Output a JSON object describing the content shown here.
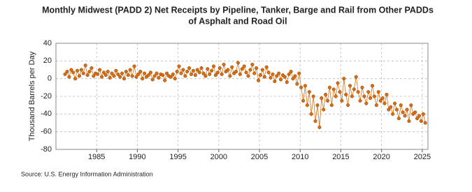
{
  "chart_data": {
    "type": "scatter",
    "title": [
      "Monthly Midwest (PADD 2) Net Receipts by Pipeline, Tanker, Barge and Rail from Other PADDs",
      "of Asphalt and Road Oil"
    ],
    "y_label": "Thousand Barrels per Day",
    "source": "Source: U.S. Energy Information Administration",
    "xlim": [
      1980,
      2025.7
    ],
    "xticks": [
      1985,
      1990,
      1995,
      2000,
      2005,
      2010,
      2015,
      2020,
      2025
    ],
    "ylim": [
      -80,
      40
    ],
    "yticks": [
      -80,
      -60,
      -40,
      -20,
      0,
      20,
      40
    ],
    "grid": true,
    "series": [
      {
        "name": "Net Receipts",
        "color": "#d96e10",
        "edge": "#8a3c00",
        "x": [
          1981.125,
          1981.375,
          1981.625,
          1981.875,
          1982.125,
          1982.375,
          1982.625,
          1982.875,
          1983.125,
          1983.375,
          1983.625,
          1983.875,
          1984.125,
          1984.375,
          1984.625,
          1984.875,
          1985.125,
          1985.375,
          1985.625,
          1985.875,
          1986.125,
          1986.375,
          1986.625,
          1986.875,
          1987.125,
          1987.375,
          1987.625,
          1987.875,
          1988.125,
          1988.375,
          1988.625,
          1988.875,
          1989.125,
          1989.375,
          1989.625,
          1989.875,
          1990.125,
          1990.375,
          1990.625,
          1990.875,
          1991.125,
          1991.375,
          1991.625,
          1991.875,
          1992.125,
          1992.375,
          1992.625,
          1992.875,
          1993.125,
          1993.375,
          1993.625,
          1993.875,
          1994.125,
          1994.375,
          1994.625,
          1994.875,
          1995.125,
          1995.375,
          1995.625,
          1995.875,
          1996.125,
          1996.375,
          1996.625,
          1996.875,
          1997.125,
          1997.375,
          1997.625,
          1997.875,
          1998.125,
          1998.375,
          1998.625,
          1998.875,
          1999.125,
          1999.375,
          1999.625,
          1999.875,
          2000.125,
          2000.375,
          2000.625,
          2000.875,
          2001.125,
          2001.375,
          2001.625,
          2001.875,
          2002.125,
          2002.375,
          2002.625,
          2002.875,
          2003.125,
          2003.375,
          2003.625,
          2003.875,
          2004.125,
          2004.375,
          2004.625,
          2004.875,
          2005.125,
          2005.375,
          2005.625,
          2005.875,
          2006.125,
          2006.375,
          2006.625,
          2006.875,
          2007.125,
          2007.375,
          2007.625,
          2007.875,
          2008.125,
          2008.375,
          2008.625,
          2008.875,
          2009.125,
          2009.375,
          2009.625,
          2009.875,
          2010.125,
          2010.375,
          2010.625,
          2010.875,
          2011.125,
          2011.375,
          2011.625,
          2011.875,
          2012.125,
          2012.375,
          2012.625,
          2012.875,
          2013.125,
          2013.375,
          2013.625,
          2013.875,
          2014.125,
          2014.375,
          2014.625,
          2014.875,
          2015.125,
          2015.375,
          2015.625,
          2015.875,
          2016.125,
          2016.375,
          2016.625,
          2016.875,
          2017.125,
          2017.375,
          2017.625,
          2017.875,
          2018.125,
          2018.375,
          2018.625,
          2018.875,
          2019.125,
          2019.375,
          2019.625,
          2019.875,
          2020.125,
          2020.375,
          2020.625,
          2020.875,
          2021.125,
          2021.375,
          2021.625,
          2021.875,
          2022.125,
          2022.375,
          2022.625,
          2022.875,
          2023.125,
          2023.375,
          2023.625,
          2023.875,
          2024.125,
          2024.375,
          2024.625,
          2024.875,
          2025.125,
          2025.375
        ],
        "values": [
          5,
          8,
          2,
          10,
          7,
          0,
          9,
          3,
          10,
          6,
          15,
          4,
          8,
          12,
          3,
          6,
          5,
          10,
          2,
          7,
          4,
          8,
          1,
          6,
          3,
          9,
          5,
          2,
          6,
          0,
          8,
          4,
          10,
          3,
          14,
          2,
          5,
          8,
          0,
          6,
          2,
          4,
          7,
          -1,
          3,
          6,
          1,
          5,
          4,
          -2,
          6,
          3,
          2,
          5,
          0,
          8,
          14,
          6,
          10,
          3,
          8,
          12,
          5,
          9,
          4,
          10,
          7,
          12,
          6,
          3,
          11,
          5,
          9,
          14,
          4,
          7,
          12,
          5,
          16,
          8,
          10,
          3,
          13,
          6,
          8,
          18,
          5,
          11,
          14,
          7,
          3,
          10,
          16,
          6,
          12,
          -2,
          4,
          10,
          2,
          13,
          7,
          1,
          5,
          -3,
          3,
          6,
          -1,
          4,
          2,
          -4,
          5,
          8,
          0,
          3,
          -6,
          6,
          -10,
          -25,
          -8,
          -30,
          -15,
          -40,
          -20,
          -48,
          -30,
          -55,
          -22,
          -35,
          -18,
          -25,
          -10,
          -30,
          -12,
          -20,
          -5,
          -15,
          -25,
          0,
          -18,
          -30,
          -8,
          -20,
          -12,
          2,
          -15,
          -25,
          -10,
          -20,
          -28,
          -15,
          -22,
          -8,
          -20,
          -30,
          -15,
          -25,
          -22,
          -28,
          -18,
          -35,
          -32,
          -40,
          -28,
          -35,
          -45,
          -30,
          -38,
          -42,
          -35,
          -48,
          -30,
          -40,
          -38,
          -45,
          -42,
          -48,
          -40,
          -50
        ]
      }
    ]
  }
}
